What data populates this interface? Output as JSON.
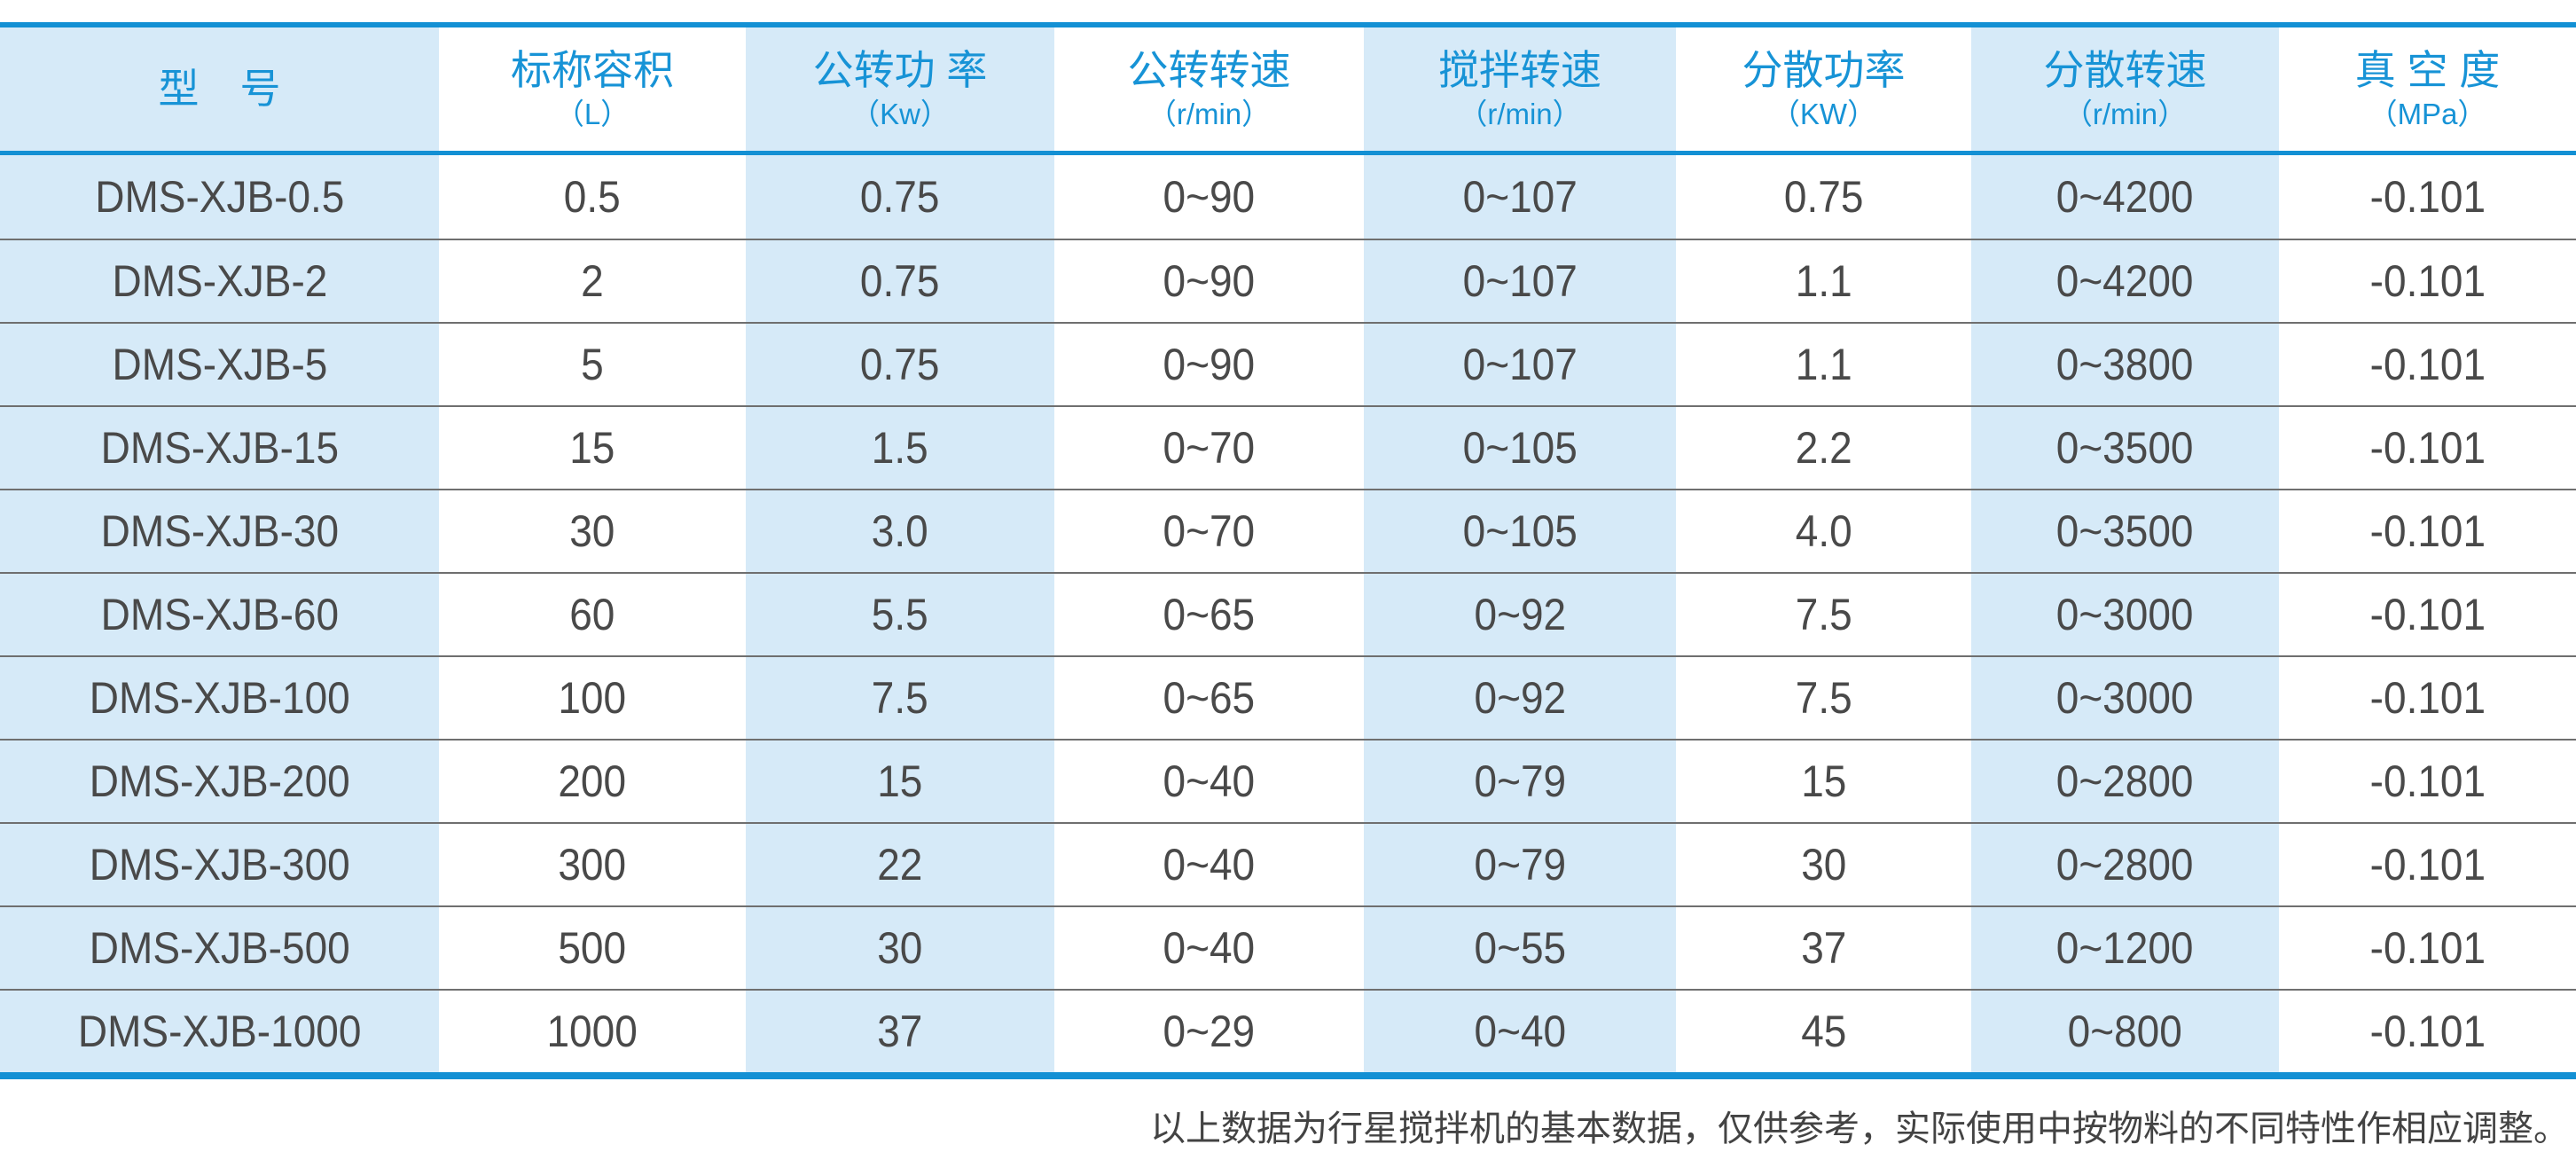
{
  "table": {
    "columns": [
      {
        "title": "型　号",
        "unit": ""
      },
      {
        "title": "标称容积",
        "unit": "（L）"
      },
      {
        "title": "公转功 率",
        "unit": "（Kw）"
      },
      {
        "title": "公转转速",
        "unit": "（r/min）"
      },
      {
        "title": "搅拌转速",
        "unit": "（r/min）"
      },
      {
        "title": "分散功率",
        "unit": "（KW）"
      },
      {
        "title": "分散转速",
        "unit": "（r/min）"
      },
      {
        "title": "真 空 度",
        "unit": "（MPa）"
      }
    ],
    "rows": [
      [
        "DMS-XJB-0.5",
        "0.5",
        "0.75",
        "0~90",
        "0~107",
        "0.75",
        "0~4200",
        "-0.101"
      ],
      [
        "DMS-XJB-2",
        "2",
        "0.75",
        "0~90",
        "0~107",
        "1.1",
        "0~4200",
        "-0.101"
      ],
      [
        "DMS-XJB-5",
        "5",
        "0.75",
        "0~90",
        "0~107",
        "1.1",
        "0~3800",
        "-0.101"
      ],
      [
        "DMS-XJB-15",
        "15",
        "1.5",
        "0~70",
        "0~105",
        "2.2",
        "0~3500",
        "-0.101"
      ],
      [
        "DMS-XJB-30",
        "30",
        "3.0",
        "0~70",
        "0~105",
        "4.0",
        "0~3500",
        "-0.101"
      ],
      [
        "DMS-XJB-60",
        "60",
        "5.5",
        "0~65",
        "0~92",
        "7.5",
        "0~3000",
        "-0.101"
      ],
      [
        "DMS-XJB-100",
        "100",
        "7.5",
        "0~65",
        "0~92",
        "7.5",
        "0~3000",
        "-0.101"
      ],
      [
        "DMS-XJB-200",
        "200",
        "15",
        "0~40",
        "0~79",
        "15",
        "0~2800",
        "-0.101"
      ],
      [
        "DMS-XJB-300",
        "300",
        "22",
        "0~40",
        "0~79",
        "30",
        "0~2800",
        "-0.101"
      ],
      [
        "DMS-XJB-500",
        "500",
        "30",
        "0~40",
        "0~55",
        "37",
        "0~1200",
        "-0.101"
      ],
      [
        "DMS-XJB-1000",
        "1000",
        "37",
        "0~29",
        "0~40",
        "45",
        "0~800",
        "-0.101"
      ]
    ]
  },
  "footnote": "以上数据为行星搅拌机的基本数据，仅供参考，实际使用中按物料的不同特性作相应调整。",
  "colors": {
    "accent_blue": "#1390d4",
    "header_text_blue": "#1793d6",
    "light_blue_column_bg": "#d6eaf8",
    "data_text_gray": "#494949",
    "row_divider_gray": "#6f6f6f"
  }
}
